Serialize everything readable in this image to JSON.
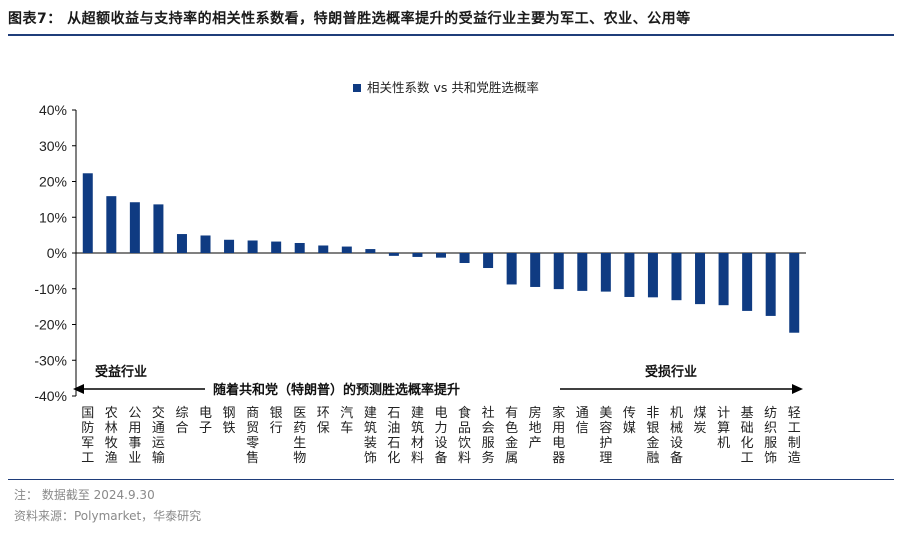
{
  "title": "图表7：  从超额收益与支持率的相关性系数看，特朗普胜选概率提升的受益行业主要为军工、农业、公用等",
  "note": "注：  数据截至 2024.9.30",
  "source": "资料来源：Polymarket，华泰研究",
  "colors": {
    "bar": "#0f3b82",
    "rule": "#1f3d7a",
    "arrow": "#000000"
  },
  "chart_data": {
    "type": "bar",
    "legend": "相关性系数 vs 共和党胜选概率",
    "legend_position": "top-right",
    "grid": false,
    "ylim": [
      -40,
      40
    ],
    "yticks": [
      "40%",
      "30%",
      "20%",
      "10%",
      "0%",
      "-10%",
      "-20%",
      "-30%",
      "-40%"
    ],
    "ytick_values": [
      40,
      30,
      20,
      10,
      0,
      -10,
      -20,
      -30,
      -40
    ],
    "categories": [
      "国防军工",
      "农林牧渔",
      "公用事业",
      "交通运输",
      "综合",
      "电子",
      "钢铁",
      "商贸零售",
      "银行",
      "医药生物",
      "环保",
      "汽车",
      "建筑装饰",
      "石油石化",
      "建筑材料",
      "电力设备",
      "食品饮料",
      "社会服务",
      "有色金属",
      "房地产",
      "家用电器",
      "通信",
      "美容护理",
      "传媒",
      "非银金融",
      "机械设备",
      "煤炭",
      "计算机",
      "基础化工",
      "纺织服饰",
      "轻工制造"
    ],
    "values": [
      22.3,
      15.9,
      14.2,
      13.6,
      5.3,
      4.9,
      3.7,
      3.5,
      3.2,
      2.8,
      2.1,
      1.8,
      1.1,
      -0.8,
      -1.1,
      -1.3,
      -2.8,
      -4.2,
      -8.8,
      -9.5,
      -10.1,
      -10.6,
      -10.8,
      -12.3,
      -12.4,
      -13.2,
      -14.3,
      -14.6,
      -16.2,
      -17.6,
      -22.3
    ],
    "annotations": {
      "left": "受益行业",
      "center": "随着共和党（特朗普）的预测胜选概率提升",
      "right": "受损行业"
    }
  }
}
